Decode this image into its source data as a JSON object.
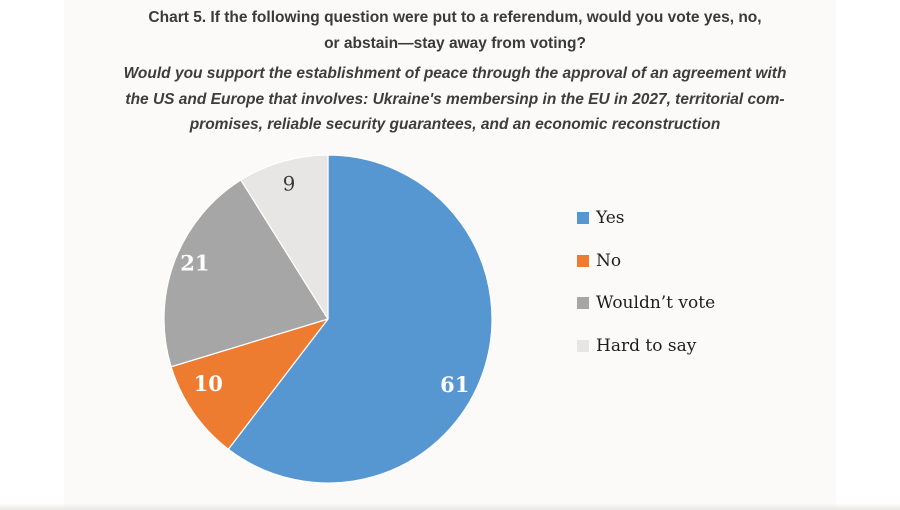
{
  "chart_data": {
    "type": "pie",
    "title_lines": [
      "Chart 5. If the following question were put to a referendum, would you vote yes, no,",
      "or abstain—stay away from voting?"
    ],
    "subtitle_lines": [
      "Would you support the establishment of peace through the approval of an agreement with",
      "the US and Europe that involves: Ukraine's membersinp in the EU in 2027, territorial com-",
      "promises, reliable security guarantees, and an economic reconstruction"
    ],
    "series": [
      {
        "label": "Yes",
        "value": 61,
        "color": "#5696d1",
        "label_color": "#ffffff"
      },
      {
        "label": "No",
        "value": 10,
        "color": "#ed7c31",
        "label_color": "#ffffff"
      },
      {
        "label": "Wouldn’t vote",
        "value": 21,
        "color": "#a6a6a6",
        "label_color": "#ffffff"
      },
      {
        "label": "Hard to say",
        "value": 9,
        "color": "#e7e6e4",
        "label_color": "#3a3a3a"
      }
    ],
    "start_angle_deg": 0,
    "direction": "clockwise",
    "legend_position": "right",
    "data_labels": "inside",
    "background": "#ffffff"
  },
  "palette": {
    "title_text": "#3a3a3a",
    "legend_text": "#1d1d1d",
    "paper_tint": "#fbfaf8",
    "slice_border": "#ffffff"
  }
}
